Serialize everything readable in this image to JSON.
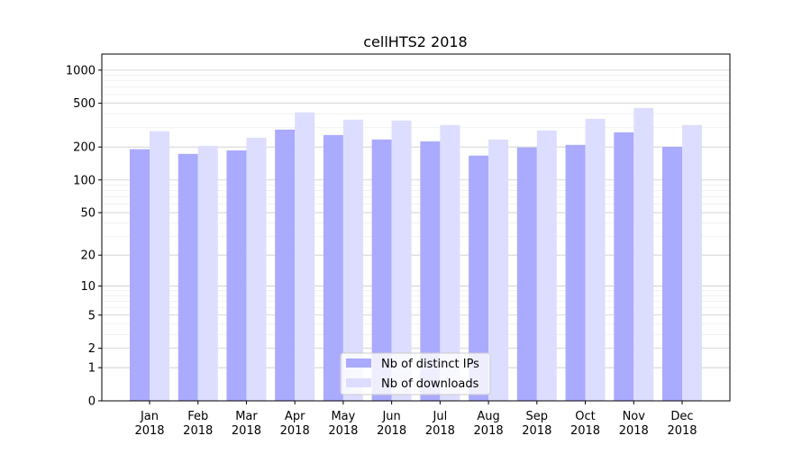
{
  "chart_data": {
    "type": "bar",
    "title": "cellHTS2 2018",
    "xlabel": "",
    "ylabel": "",
    "yscale": "log10(y+1)",
    "ylim": [
      0,
      1400
    ],
    "grid": true,
    "legend_position": "bottom-center",
    "categories": [
      "Jan\n2018",
      "Feb\n2018",
      "Mar\n2018",
      "Apr\n2018",
      "May\n2018",
      "Jun\n2018",
      "Jul\n2018",
      "Aug\n2018",
      "Sep\n2018",
      "Oct\n2018",
      "Nov\n2018",
      "Dec\n2018"
    ],
    "yticks": [
      0,
      1,
      2,
      5,
      10,
      20,
      50,
      100,
      200,
      500,
      1000
    ],
    "series": [
      {
        "name": "Nb of distinct IPs",
        "color": "#aaaaff",
        "values": [
          191,
          173,
          186,
          288,
          257,
          234,
          225,
          167,
          198,
          209,
          272,
          201
        ]
      },
      {
        "name": "Nb of downloads",
        "color": "#ddddff",
        "values": [
          278,
          205,
          243,
          413,
          355,
          348,
          317,
          234,
          283,
          361,
          453,
          317
        ]
      }
    ]
  }
}
